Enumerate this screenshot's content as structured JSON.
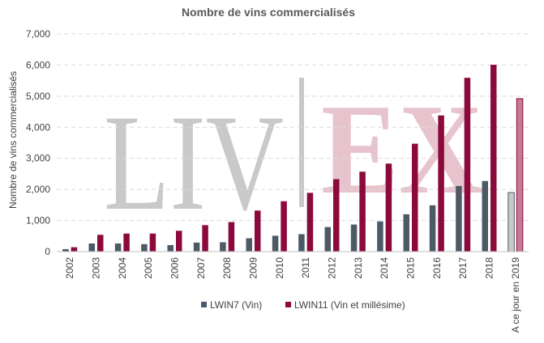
{
  "chart_data": {
    "type": "bar",
    "title": "Nombre de vins commercialisés",
    "ylabel": "Nombre de vins commercialisés",
    "xlabel": "",
    "ylim": [
      0,
      7000
    ],
    "yticks": [
      0,
      1000,
      2000,
      3000,
      4000,
      5000,
      6000,
      7000
    ],
    "ytick_labels": [
      "0",
      "1,000",
      "2,000",
      "3,000",
      "4,000",
      "5,000",
      "6,000",
      "7,000"
    ],
    "grid": true,
    "legend_position": "bottom",
    "categories": [
      "2002",
      "2003",
      "2004",
      "2005",
      "2006",
      "2007",
      "2008",
      "2009",
      "2010",
      "2011",
      "2012",
      "2013",
      "2014",
      "2015",
      "2016",
      "2017",
      "2018",
      "A ce jour en 2019"
    ],
    "series": [
      {
        "name": "LWIN7 (Vin)",
        "color": "#4d5a66",
        "values": [
          80,
          260,
          260,
          240,
          210,
          290,
          300,
          430,
          510,
          560,
          790,
          870,
          970,
          1200,
          1490,
          2110,
          2270,
          1900
        ]
      },
      {
        "name": "LWIN11 (Vin et millésime)",
        "color": "#8b0a3b",
        "values": [
          140,
          540,
          580,
          580,
          670,
          850,
          950,
          1320,
          1620,
          1890,
          2330,
          2570,
          2830,
          3470,
          4380,
          5590,
          6010,
          4920
        ]
      }
    ],
    "highlight_last_category": {
      "series_colors": [
        "#c8c8c8",
        "#c77a94"
      ]
    }
  },
  "watermark": {
    "left_text": "LIV",
    "right_text": "EX",
    "left_color": "#c9c9c9",
    "right_color": "#e7c4cd",
    "divider_color": "#c9c9c9"
  }
}
